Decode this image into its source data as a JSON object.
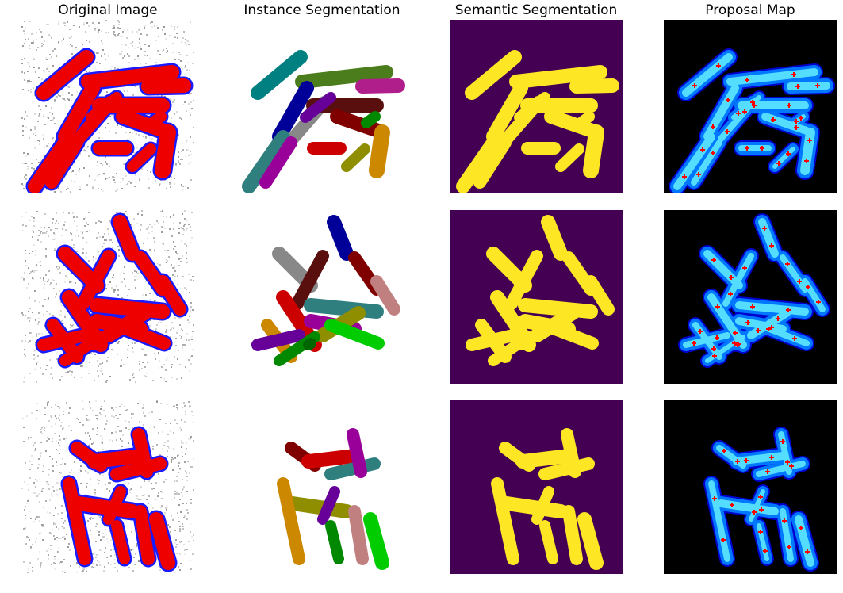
{
  "figure": {
    "column_titles": [
      "Original Image",
      "Instance Segmentation",
      "Semantic Segmentation",
      "Proposal Map"
    ],
    "colors": {
      "background": "#ffffff",
      "cell_fill": "#ee0000",
      "cell_edge": "#1a1aff",
      "semantic_bg": "#440154",
      "semantic_fg": "#fde725",
      "proposal_bg": "#000000",
      "proposal_marker": "#ff0000"
    },
    "instance_palette": [
      "#008080",
      "#4b7d1d",
      "#b01e8c",
      "#000099",
      "#888888",
      "#5a0f0f",
      "#800000",
      "#cc0000",
      "#2f7f7f",
      "#990099",
      "#8e8e00",
      "#cc8800",
      "#660099",
      "#008800",
      "#c08080",
      "#00cc00",
      "#006600",
      "#004400"
    ]
  }
}
